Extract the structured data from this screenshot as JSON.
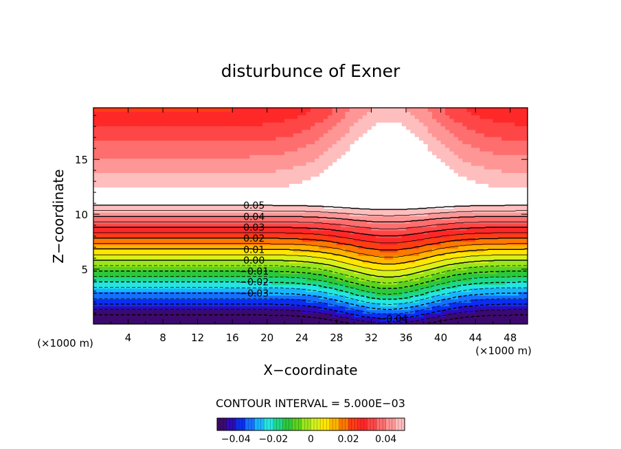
{
  "chart_data": {
    "type": "contour",
    "title": "disturbunce of Exner",
    "xlabel": "X−coordinate",
    "ylabel": "Z−coordinate",
    "x_unit_label_left": "(×1000 m)",
    "x_unit_label_right": "(×1000 m)",
    "xlim": [
      0,
      50
    ],
    "ylim": [
      0,
      19.7
    ],
    "x_ticks": [
      "4",
      "8",
      "12",
      "16",
      "20",
      "24",
      "28",
      "32",
      "36",
      "40",
      "44",
      "48"
    ],
    "y_ticks": [
      "5",
      "10",
      "15"
    ],
    "contour_interval_label": "CONTOUR INTERVAL = 5.000E−03",
    "contour_labels": [
      "0.05",
      "0.04",
      "0.03",
      "0.02",
      "0.01",
      "0.00",
      "−0.01",
      "−0.02",
      "−0.03",
      "−0.04"
    ],
    "negative_contours_dashed": true,
    "colorbar": {
      "range": [
        -0.05,
        0.05
      ],
      "ticks": [
        "−0.04",
        "−0.02",
        "0",
        "0.02",
        "0.04"
      ],
      "colors": [
        "#3c0a6e",
        "#2d0bb8",
        "#0b2ef0",
        "#1570ff",
        "#19b4ff",
        "#24e6e0",
        "#1ed787",
        "#2cc83c",
        "#5ad21e",
        "#9be61a",
        "#d7f01c",
        "#ffe600",
        "#ffb400",
        "#ff7800",
        "#ff3c14",
        "#ff2828",
        "#ff4646",
        "#ff6e6e",
        "#ff9696",
        "#ffbebe"
      ]
    }
  }
}
